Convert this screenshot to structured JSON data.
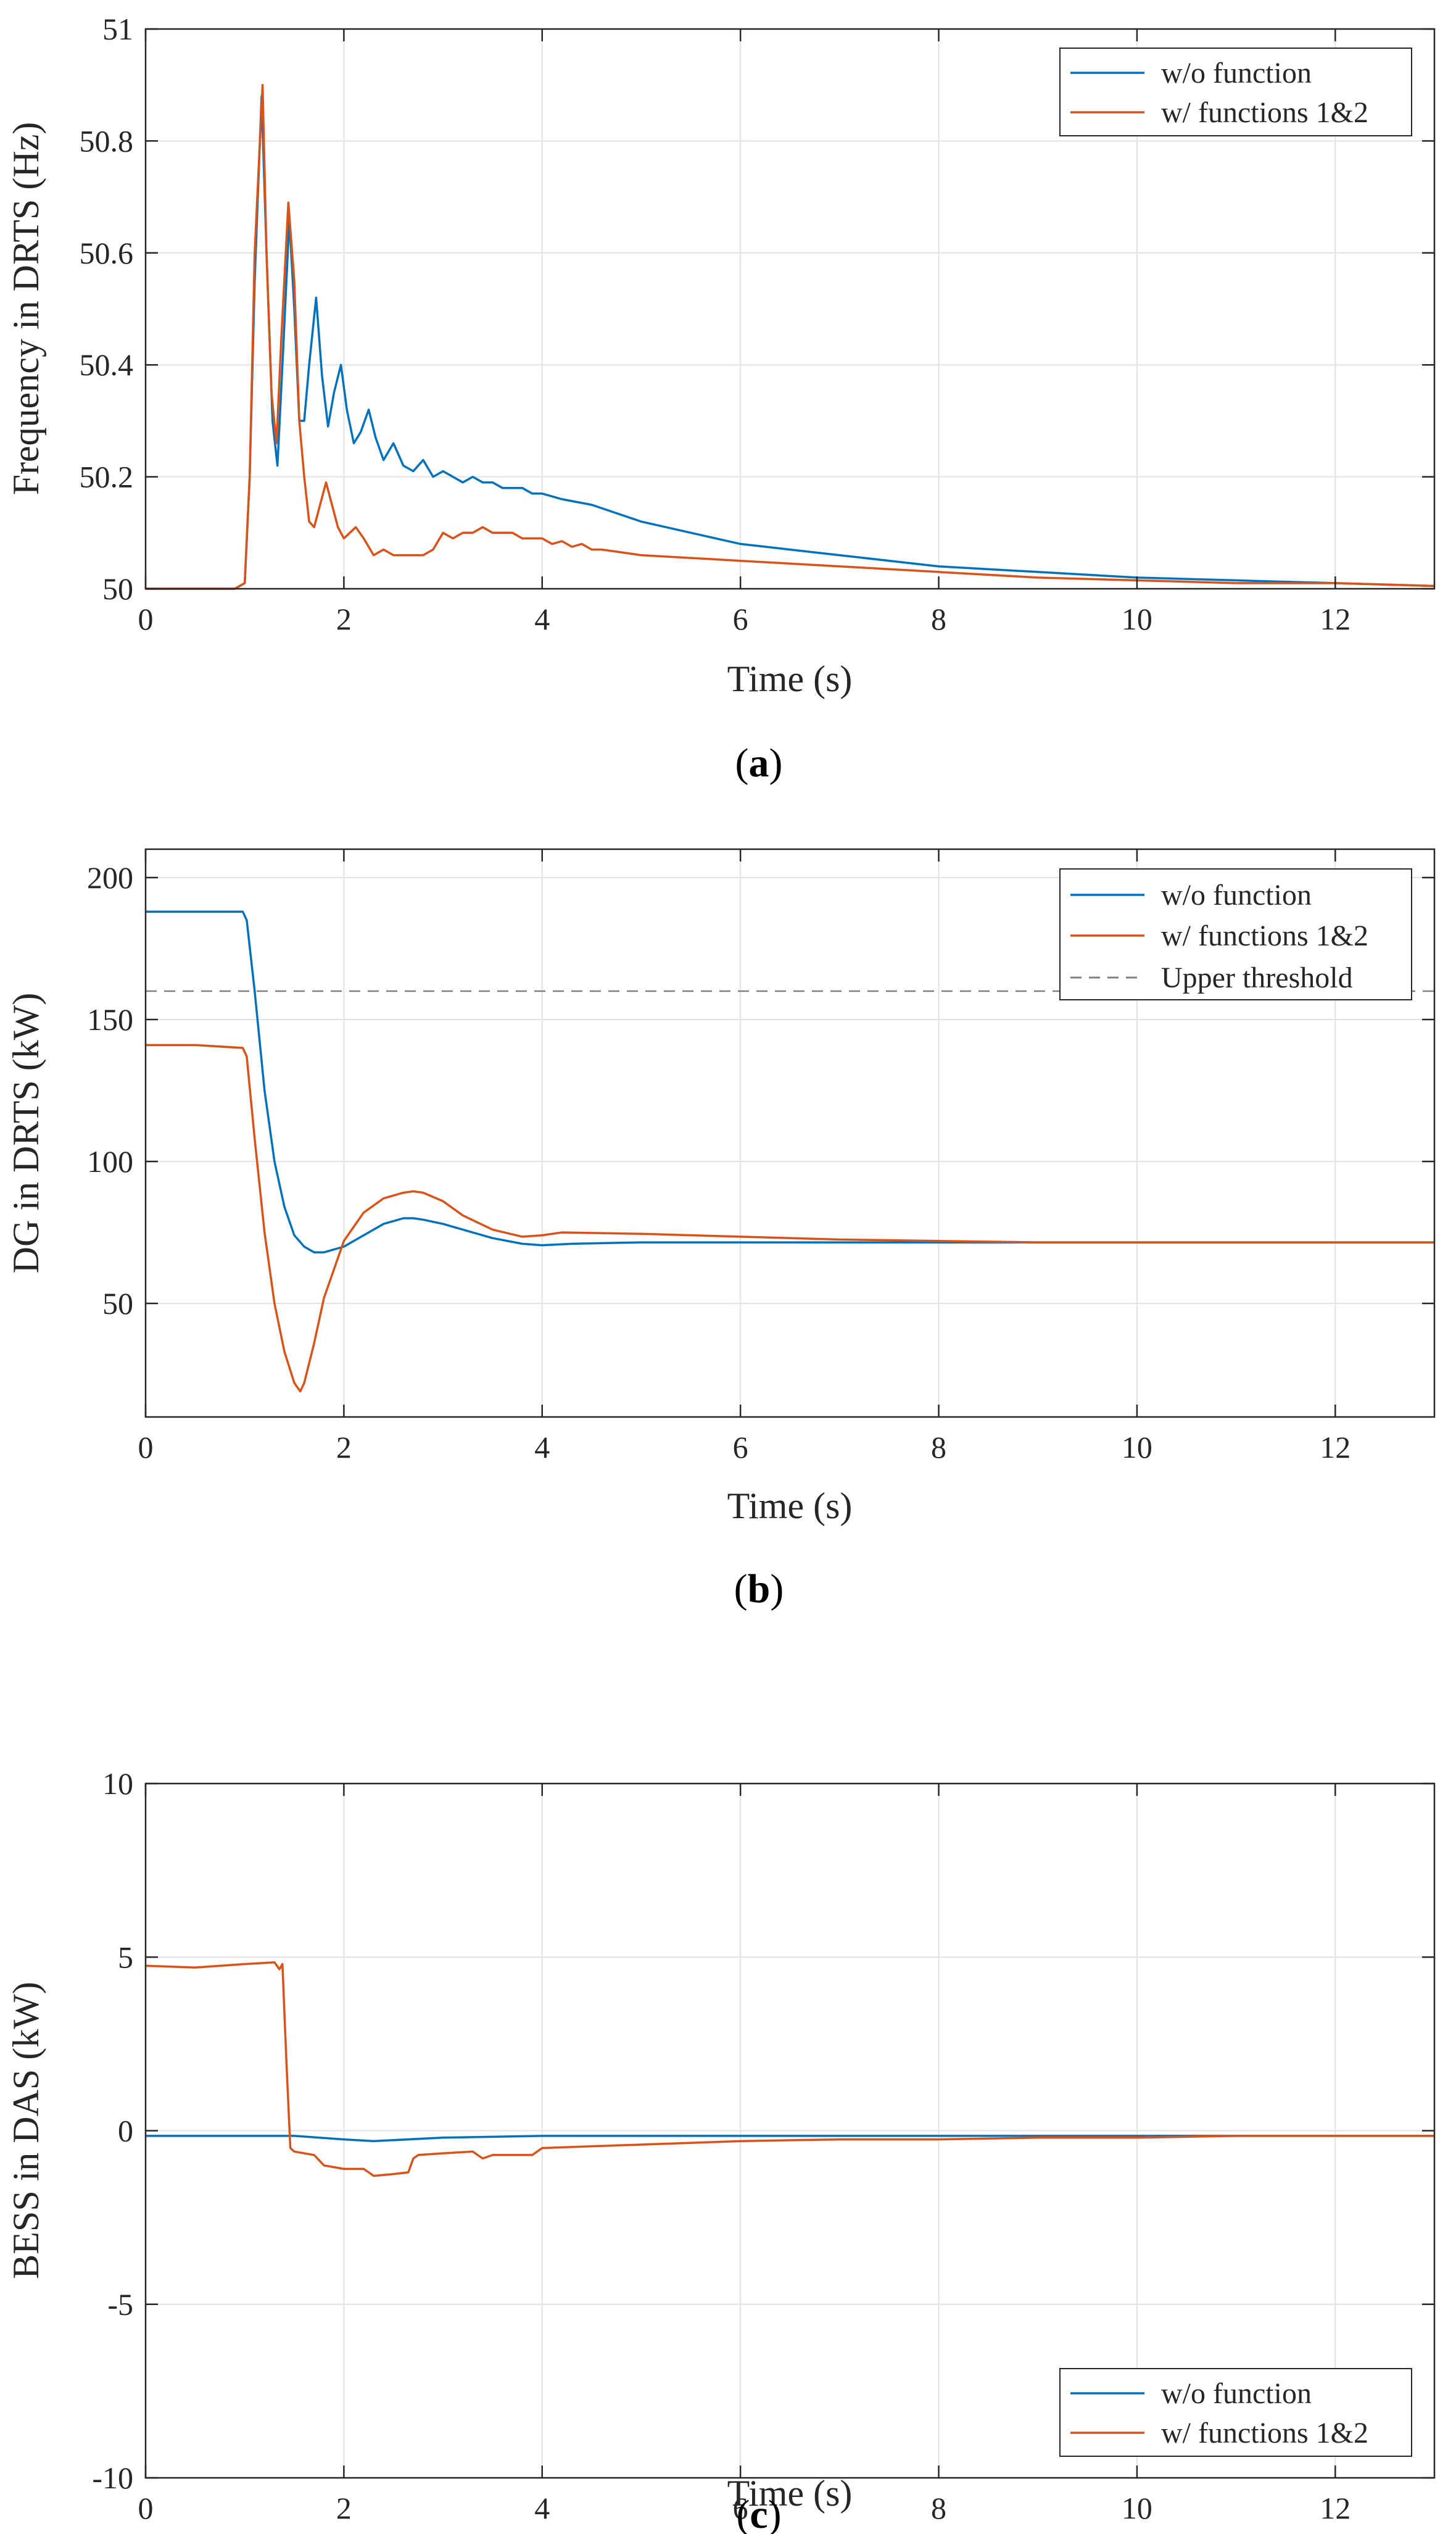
{
  "chart_data": [
    {
      "id": "a",
      "type": "line",
      "caption": {
        "open": "(",
        "letter": "a",
        "close": ")"
      },
      "xlabel": "Time (s)",
      "ylabel": "Frequency in DRTS (Hz)",
      "xlim": [
        0,
        13
      ],
      "ylim": [
        50,
        51
      ],
      "xticks": [
        0,
        2,
        4,
        6,
        8,
        10,
        12
      ],
      "xtick_labels": [
        "0",
        "2",
        "4",
        "6",
        "8",
        "10",
        "12"
      ],
      "yticks": [
        50,
        50.2,
        50.4,
        50.6,
        50.8,
        51
      ],
      "ytick_labels": [
        "50",
        "50.2",
        "50.4",
        "50.6",
        "50.8",
        "51"
      ],
      "grid": true,
      "legend": "top-right",
      "series": [
        {
          "name": "w/o function",
          "color": "#0072BD",
          "x": [
            0,
            0.5,
            0.9,
            1.0,
            1.05,
            1.1,
            1.17,
            1.22,
            1.28,
            1.33,
            1.38,
            1.45,
            1.5,
            1.55,
            1.6,
            1.65,
            1.72,
            1.78,
            1.84,
            1.9,
            1.97,
            2.03,
            2.1,
            2.17,
            2.25,
            2.32,
            2.4,
            2.5,
            2.6,
            2.7,
            2.8,
            2.9,
            3.0,
            3.1,
            3.2,
            3.3,
            3.4,
            3.5,
            3.6,
            3.7,
            3.8,
            3.9,
            4.0,
            4.2,
            4.5,
            5.0,
            5.5,
            6.0,
            7.0,
            8.0,
            9.0,
            10.0,
            11.0,
            12.0,
            13.0
          ],
          "y": [
            50.0,
            50.0,
            50.0,
            50.01,
            50.2,
            50.55,
            50.88,
            50.6,
            50.3,
            50.22,
            50.4,
            50.66,
            50.5,
            50.3,
            50.3,
            50.4,
            50.52,
            50.38,
            50.29,
            50.35,
            50.4,
            50.32,
            50.26,
            50.28,
            50.32,
            50.27,
            50.23,
            50.26,
            50.22,
            50.21,
            50.23,
            50.2,
            50.21,
            50.2,
            50.19,
            50.2,
            50.19,
            50.19,
            50.18,
            50.18,
            50.18,
            50.17,
            50.17,
            50.16,
            50.15,
            50.12,
            50.1,
            50.08,
            50.06,
            50.04,
            50.03,
            50.02,
            50.015,
            50.01,
            50.005
          ]
        },
        {
          "name": "w/ functions 1&2",
          "color": "#D95319",
          "x": [
            0,
            0.5,
            0.9,
            1.0,
            1.05,
            1.1,
            1.18,
            1.22,
            1.27,
            1.32,
            1.37,
            1.44,
            1.5,
            1.55,
            1.6,
            1.65,
            1.7,
            1.76,
            1.82,
            1.88,
            1.94,
            2.0,
            2.06,
            2.12,
            2.2,
            2.3,
            2.4,
            2.5,
            2.6,
            2.7,
            2.8,
            2.9,
            3.0,
            3.1,
            3.2,
            3.3,
            3.4,
            3.5,
            3.6,
            3.7,
            3.8,
            3.9,
            4.0,
            4.1,
            4.2,
            4.3,
            4.4,
            4.5,
            4.6,
            4.8,
            5.0,
            5.5,
            6.0,
            7.0,
            8.0,
            9.0,
            10.0,
            11.0,
            12.0,
            13.0
          ],
          "y": [
            50.0,
            50.0,
            50.0,
            50.01,
            50.2,
            50.6,
            50.9,
            50.6,
            50.35,
            50.26,
            50.45,
            50.69,
            50.55,
            50.3,
            50.2,
            50.12,
            50.11,
            50.15,
            50.19,
            50.15,
            50.11,
            50.09,
            50.1,
            50.11,
            50.09,
            50.06,
            50.07,
            50.06,
            50.06,
            50.06,
            50.06,
            50.07,
            50.1,
            50.09,
            50.1,
            50.1,
            50.11,
            50.1,
            50.1,
            50.1,
            50.09,
            50.09,
            50.09,
            50.08,
            50.085,
            50.075,
            50.08,
            50.07,
            50.07,
            50.065,
            50.06,
            50.055,
            50.05,
            50.04,
            50.03,
            50.02,
            50.015,
            50.01,
            50.01,
            50.005
          ]
        }
      ]
    },
    {
      "id": "b",
      "type": "line",
      "caption": {
        "open": "(",
        "letter": "b",
        "close": ")"
      },
      "xlabel": "Time (s)",
      "ylabel": "DG in DRTS (kW)",
      "xlim": [
        0,
        13
      ],
      "ylim": [
        10,
        210
      ],
      "xticks": [
        0,
        2,
        4,
        6,
        8,
        10,
        12
      ],
      "xtick_labels": [
        "0",
        "2",
        "4",
        "6",
        "8",
        "10",
        "12"
      ],
      "yticks": [
        50,
        100,
        150,
        200
      ],
      "ytick_labels": [
        "50",
        "100",
        "150",
        "200"
      ],
      "grid": true,
      "legend": "top-right",
      "series": [
        {
          "name": "w/o function",
          "color": "#0072BD",
          "x": [
            0,
            0.5,
            0.98,
            1.02,
            1.1,
            1.2,
            1.3,
            1.4,
            1.5,
            1.6,
            1.7,
            1.8,
            2.0,
            2.2,
            2.4,
            2.6,
            2.7,
            2.8,
            3.0,
            3.2,
            3.5,
            3.8,
            4.0,
            4.3,
            5.0,
            6.0,
            7.0,
            8.0,
            9.0,
            10.0,
            11.0,
            12.0,
            13.0
          ],
          "y": [
            188,
            188,
            188,
            185,
            160,
            125,
            100,
            84,
            74,
            70,
            68,
            68,
            70,
            74,
            78,
            80,
            80,
            79.5,
            78,
            76,
            73,
            71,
            70.5,
            71,
            71.5,
            71.5,
            71.5,
            71.5,
            71.5,
            71.5,
            71.5,
            71.5,
            71.5
          ]
        },
        {
          "name": "w/ functions 1&2",
          "color": "#D95319",
          "x": [
            0,
            0.5,
            0.98,
            1.02,
            1.1,
            1.2,
            1.3,
            1.4,
            1.5,
            1.56,
            1.6,
            1.7,
            1.8,
            2.0,
            2.2,
            2.4,
            2.6,
            2.7,
            2.8,
            3.0,
            3.2,
            3.5,
            3.8,
            4.0,
            4.2,
            5.0,
            6.0,
            7.0,
            8.0,
            9.0,
            10.0,
            11.0,
            12.0,
            13.0
          ],
          "y": [
            141,
            141,
            140,
            137,
            108,
            75,
            50,
            33,
            22,
            19,
            22,
            36,
            52,
            72,
            82,
            87,
            89,
            89.5,
            89,
            86,
            81,
            76,
            73.5,
            74,
            75,
            74.5,
            73.5,
            72.5,
            72,
            71.5,
            71.5,
            71.5,
            71.5,
            71.5
          ]
        },
        {
          "name": "Upper threshold",
          "color": "#808080",
          "dashed": true,
          "x": [
            0,
            13
          ],
          "y": [
            160,
            160
          ]
        }
      ]
    },
    {
      "id": "c",
      "type": "line",
      "caption": {
        "open": "(",
        "letter": "c",
        "close": ")"
      },
      "xlabel": "Time (s)",
      "ylabel": "BESS in DAS (kW)",
      "xlim": [
        0,
        13
      ],
      "ylim": [
        -10,
        10
      ],
      "xticks": [
        0,
        2,
        4,
        6,
        8,
        10,
        12
      ],
      "xtick_labels": [
        "0",
        "2",
        "4",
        "6",
        "8",
        "10",
        "12"
      ],
      "yticks": [
        -10,
        -5,
        0,
        5,
        10
      ],
      "ytick_labels": [
        "-10",
        "-5",
        "0",
        "5",
        "10"
      ],
      "grid": true,
      "legend": "bottom-right",
      "series": [
        {
          "name": "w/o function",
          "color": "#0072BD",
          "x": [
            0,
            1.0,
            1.5,
            2.0,
            2.3,
            3.0,
            4.0,
            6.0,
            8.0,
            10.0,
            13.0
          ],
          "y": [
            -0.15,
            -0.15,
            -0.15,
            -0.25,
            -0.3,
            -0.2,
            -0.15,
            -0.15,
            -0.15,
            -0.15,
            -0.15
          ]
        },
        {
          "name": "w/ functions 1&2",
          "color": "#D95319",
          "x": [
            0,
            0.5,
            1.0,
            1.3,
            1.35,
            1.38,
            1.42,
            1.46,
            1.5,
            1.7,
            1.8,
            2.0,
            2.1,
            2.2,
            2.3,
            2.5,
            2.65,
            2.7,
            2.75,
            3.0,
            3.3,
            3.4,
            3.5,
            3.9,
            4.0,
            4.5,
            5.0,
            6.0,
            7.0,
            8.0,
            9.0,
            10.0,
            11.0,
            13.0
          ],
          "y": [
            4.75,
            4.7,
            4.8,
            4.85,
            4.65,
            4.8,
            2.0,
            -0.5,
            -0.6,
            -0.7,
            -1.0,
            -1.1,
            -1.1,
            -1.1,
            -1.3,
            -1.25,
            -1.2,
            -0.8,
            -0.7,
            -0.65,
            -0.6,
            -0.8,
            -0.7,
            -0.7,
            -0.5,
            -0.45,
            -0.4,
            -0.3,
            -0.25,
            -0.25,
            -0.2,
            -0.2,
            -0.15,
            -0.15
          ]
        }
      ]
    }
  ]
}
